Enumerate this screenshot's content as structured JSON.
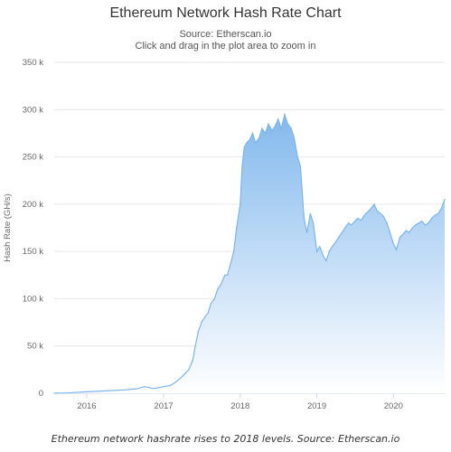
{
  "chart_data": {
    "type": "area",
    "title": "Ethereum Network Hash Rate Chart",
    "subtitle_source": "Source: Etherscan.io",
    "subtitle_hint": "Click and drag in the plot area to zoom in",
    "ylabel": "Hash Rate (GH/s)",
    "xlabel": "",
    "ylim": [
      0,
      350000
    ],
    "xlim": [
      "2015-07-30",
      "2020-09-01"
    ],
    "y_ticks": [
      {
        "value": 0,
        "label": "0"
      },
      {
        "value": 50000,
        "label": "50 k"
      },
      {
        "value": 100000,
        "label": "100 k"
      },
      {
        "value": 150000,
        "label": "150 k"
      },
      {
        "value": 200000,
        "label": "200 k"
      },
      {
        "value": 250000,
        "label": "250 k"
      },
      {
        "value": 300000,
        "label": "300 k"
      },
      {
        "value": 350000,
        "label": "350 k"
      }
    ],
    "x_ticks": [
      {
        "value": "2016-01-01",
        "label": "2016"
      },
      {
        "value": "2017-01-01",
        "label": "2017"
      },
      {
        "value": "2018-01-01",
        "label": "2018"
      },
      {
        "value": "2019-01-01",
        "label": "2019"
      },
      {
        "value": "2020-01-01",
        "label": "2020"
      }
    ],
    "grid": true,
    "legend": "none",
    "colors": {
      "line": "#7cb5ec",
      "fill_top": "#7cb5ec",
      "fill_bottom": "#ffffff"
    },
    "series": [
      {
        "x": [
          "2015-07-30",
          "2015-10-01",
          "2016-01-01",
          "2016-04-01",
          "2016-07-01",
          "2016-09-01",
          "2016-10-01",
          "2016-11-15",
          "2017-01-01",
          "2017-02-01",
          "2017-03-01",
          "2017-04-01",
          "2017-05-01",
          "2017-05-20",
          "2017-06-01",
          "2017-06-15",
          "2017-07-01",
          "2017-07-15",
          "2017-08-01",
          "2017-08-15",
          "2017-09-01",
          "2017-09-15",
          "2017-10-01",
          "2017-10-20",
          "2017-11-01",
          "2017-11-20",
          "2017-12-01",
          "2017-12-15",
          "2018-01-01",
          "2018-01-10",
          "2018-01-20",
          "2018-02-01",
          "2018-02-15",
          "2018-03-01",
          "2018-03-15",
          "2018-04-01",
          "2018-04-15",
          "2018-05-01",
          "2018-05-15",
          "2018-06-01",
          "2018-06-15",
          "2018-07-01",
          "2018-07-15",
          "2018-08-01",
          "2018-08-15",
          "2018-09-01",
          "2018-09-15",
          "2018-10-01",
          "2018-10-15",
          "2018-11-01",
          "2018-11-15",
          "2018-12-01",
          "2018-12-15",
          "2019-01-01",
          "2019-01-15",
          "2019-02-01",
          "2019-02-15",
          "2019-03-01",
          "2019-03-15",
          "2019-04-01",
          "2019-04-15",
          "2019-05-01",
          "2019-05-15",
          "2019-06-01",
          "2019-06-15",
          "2019-07-01",
          "2019-07-15",
          "2019-08-01",
          "2019-08-15",
          "2019-09-01",
          "2019-09-15",
          "2019-10-01",
          "2019-10-15",
          "2019-11-01",
          "2019-11-15",
          "2019-12-01",
          "2019-12-15",
          "2020-01-01",
          "2020-01-15",
          "2020-02-01",
          "2020-02-15",
          "2020-03-01",
          "2020-03-15",
          "2020-04-01",
          "2020-04-15",
          "2020-05-01",
          "2020-05-15",
          "2020-06-01",
          "2020-06-15",
          "2020-07-01",
          "2020-07-15",
          "2020-08-01",
          "2020-08-15",
          "2020-09-01"
        ],
        "values": [
          0,
          300,
          1500,
          2500,
          3500,
          5000,
          7000,
          5000,
          7000,
          8000,
          12000,
          18000,
          25000,
          35000,
          50000,
          65000,
          75000,
          80000,
          85000,
          95000,
          100000,
          110000,
          115000,
          125000,
          125000,
          140000,
          150000,
          175000,
          200000,
          240000,
          260000,
          265000,
          268000,
          275000,
          265000,
          270000,
          280000,
          275000,
          285000,
          278000,
          282000,
          290000,
          280000,
          295000,
          285000,
          280000,
          270000,
          250000,
          240000,
          185000,
          170000,
          190000,
          180000,
          150000,
          155000,
          145000,
          140000,
          150000,
          155000,
          160000,
          165000,
          170000,
          175000,
          180000,
          178000,
          182000,
          185000,
          183000,
          188000,
          192000,
          195000,
          200000,
          193000,
          190000,
          187000,
          180000,
          170000,
          158000,
          152000,
          165000,
          168000,
          172000,
          170000,
          175000,
          178000,
          180000,
          182000,
          178000,
          180000,
          185000,
          188000,
          190000,
          195000,
          205000
        ]
      }
    ]
  },
  "caption": "Ethereum network hashrate rises to 2018 levels. Source: Etherscan.io"
}
